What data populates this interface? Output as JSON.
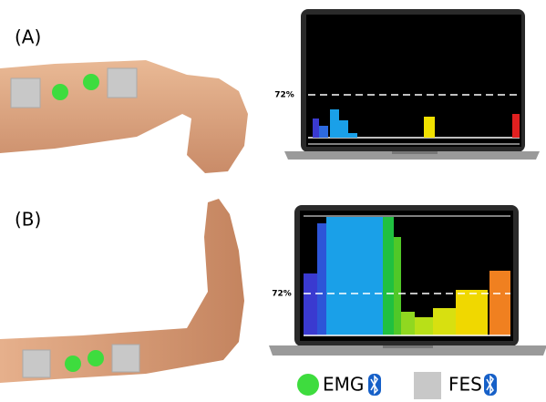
{
  "panels": [
    {
      "label": "(A)",
      "threshold_label": "72%"
    },
    {
      "label": "(B)",
      "threshold_label": "72%"
    }
  ],
  "legend": {
    "items": [
      {
        "label": "EMG"
      },
      {
        "label": "FES"
      }
    ]
  }
}
